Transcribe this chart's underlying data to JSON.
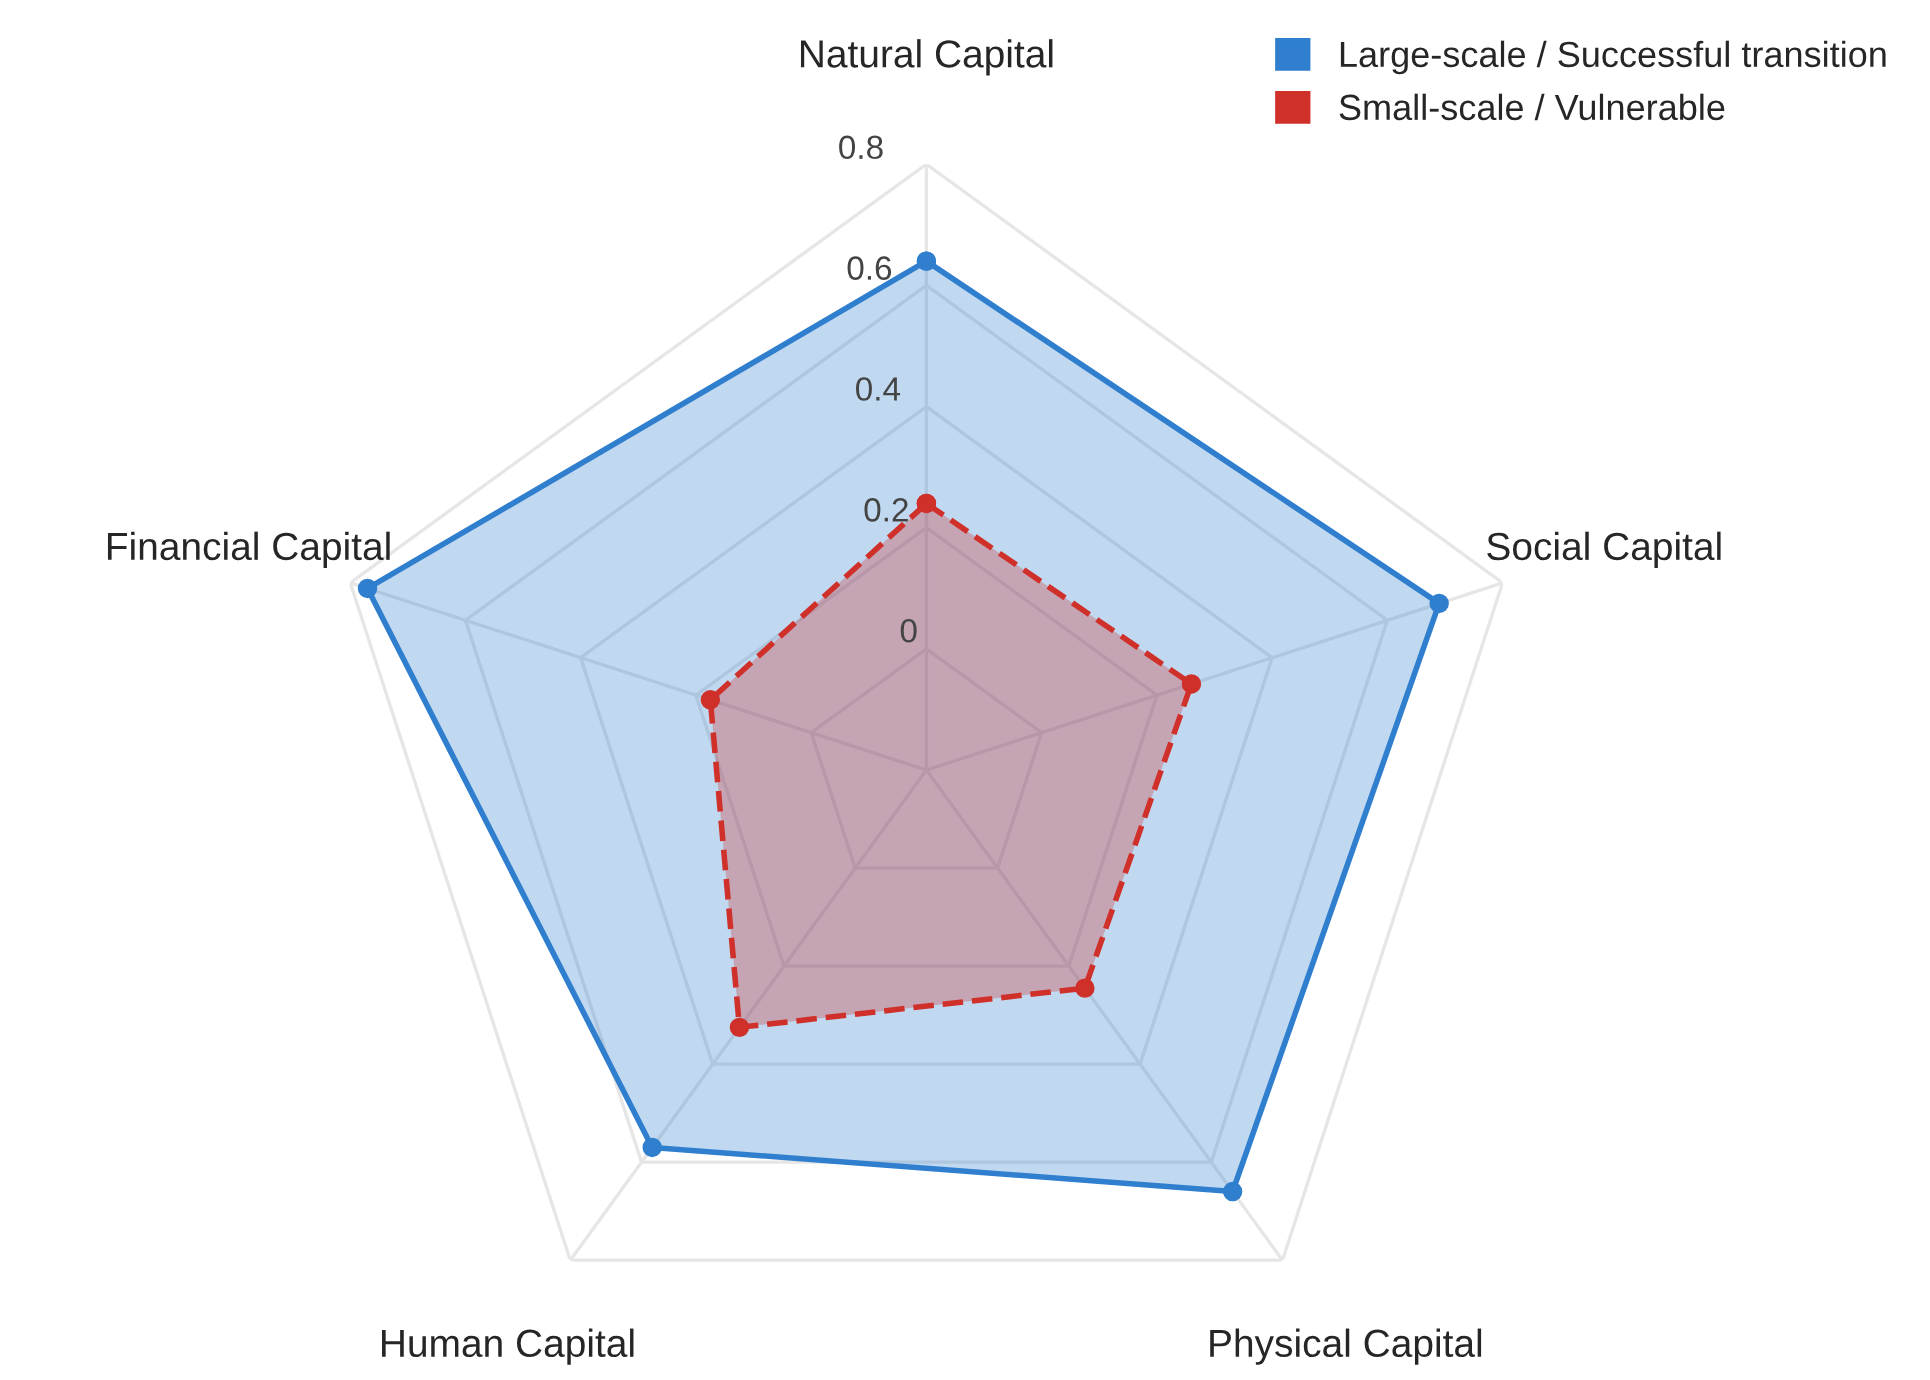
{
  "chart_data": {
    "type": "radar",
    "categories": [
      "Natural Capital",
      "Social Capital",
      "Physical Capital",
      "Human Capital",
      "Financial Capital"
    ],
    "series": [
      {
        "name": "Large-scale / Successful transition",
        "color": "#2f7fce",
        "values": [
          0.64,
          0.69,
          0.66,
          0.57,
          0.77
        ],
        "line_style": "solid"
      },
      {
        "name": "Small-scale / Vulnerable",
        "color": "#d0302a",
        "values": [
          0.24,
          0.26,
          0.245,
          0.325,
          0.175
        ],
        "line_style": "dashed"
      }
    ],
    "ylim": [
      -0.2,
      0.8
    ],
    "yticks": [
      0,
      0.2,
      0.4,
      0.6,
      0.8
    ],
    "grid": true,
    "legend": "top right",
    "marker": "circle"
  }
}
